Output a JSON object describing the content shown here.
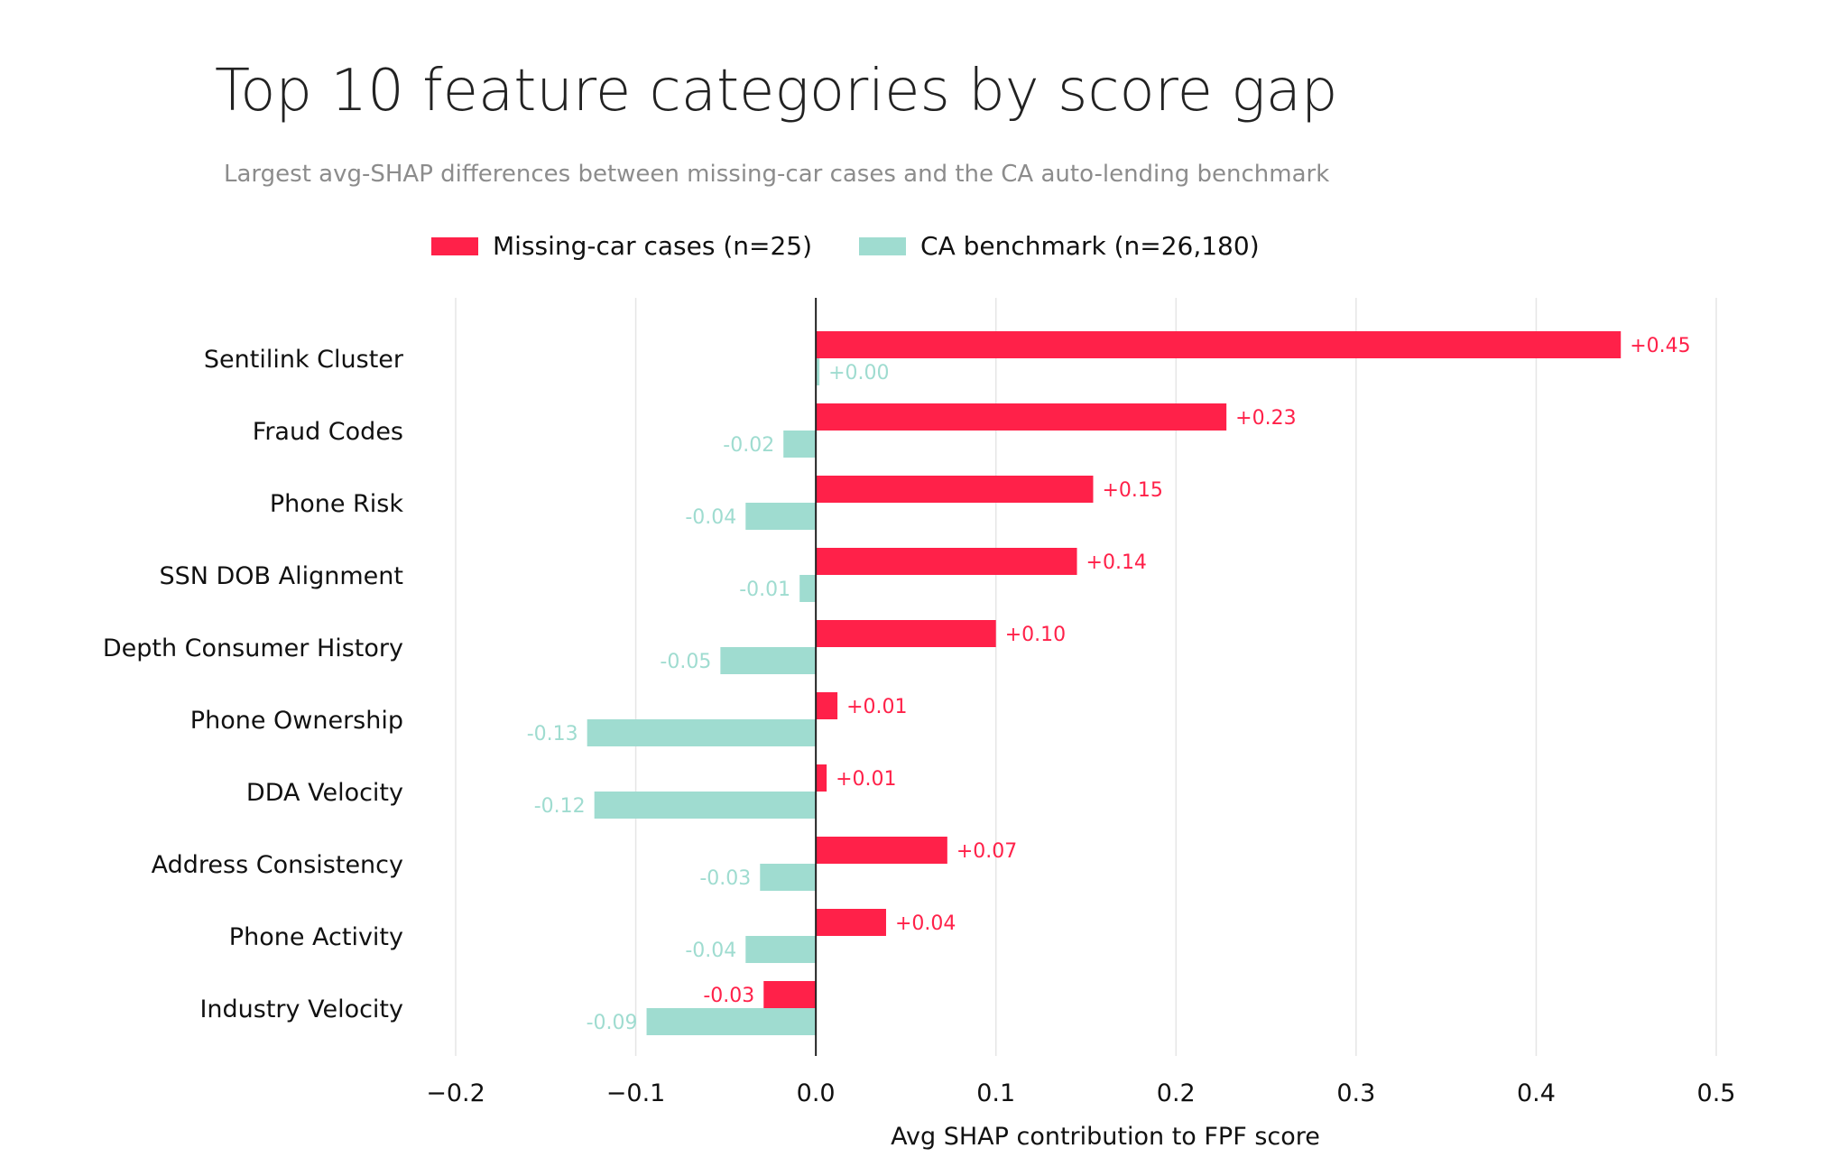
{
  "chart_data": {
    "type": "bar",
    "orientation": "horizontal",
    "title": "Top 10 feature categories by score gap",
    "subtitle": "Largest avg-SHAP differences between missing-car cases and the CA auto-lending benchmark",
    "xlabel": "Avg SHAP contribution to FPF score",
    "xlim": [
      -0.2,
      0.5
    ],
    "x_ticks": [
      "−0.2",
      "−0.1",
      "0.0",
      "0.1",
      "0.2",
      "0.3",
      "0.4",
      "0.5"
    ],
    "x_tick_values": [
      -0.2,
      -0.1,
      0.0,
      0.1,
      0.2,
      0.3,
      0.4,
      0.5
    ],
    "grid": "vertical",
    "legend_position": "top-center",
    "categories": [
      "Sentilink Cluster",
      "Fraud Codes",
      "Phone Risk",
      "SSN DOB Alignment",
      "Depth Consumer History",
      "Phone Ownership",
      "DDA Velocity",
      "Address Consistency",
      "Phone Activity",
      "Industry Velocity"
    ],
    "series": [
      {
        "name": "Missing-car cases (n=25)",
        "color": "#ff2149",
        "values": [
          0.447,
          0.228,
          0.154,
          0.145,
          0.1,
          0.012,
          0.006,
          0.073,
          0.039,
          -0.029
        ],
        "labels": [
          "+0.45",
          "+0.23",
          "+0.15",
          "+0.14",
          "+0.10",
          "+0.01",
          "+0.01",
          "+0.07",
          "+0.04",
          "-0.03"
        ]
      },
      {
        "name": "CA benchmark (n=26,180)",
        "color": "#9fdcd0",
        "values": [
          0.002,
          -0.018,
          -0.039,
          -0.009,
          -0.053,
          -0.127,
          -0.123,
          -0.031,
          -0.039,
          -0.094
        ],
        "labels": [
          "+0.00",
          "-0.02",
          "-0.04",
          "-0.01",
          "-0.05",
          "-0.13",
          "-0.12",
          "-0.03",
          "-0.04",
          "-0.09"
        ]
      }
    ]
  },
  "colors": {
    "grid": "#e6e6e6",
    "zero_line": "#222222",
    "text": "#111111"
  }
}
